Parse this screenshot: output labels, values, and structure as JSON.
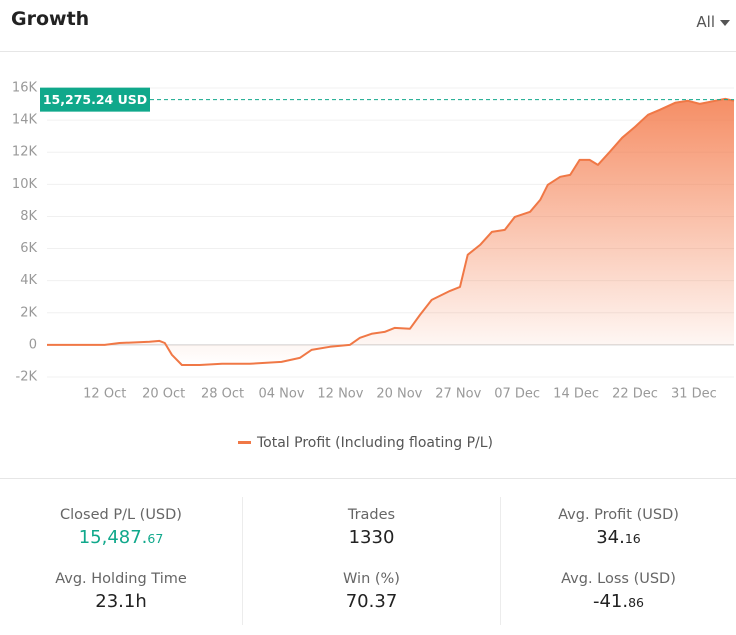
{
  "header": {
    "title": "Growth",
    "filter": "All"
  },
  "chart_data": {
    "type": "line",
    "xticks": [
      {
        "value": 0,
        "label": "12 Oct"
      },
      {
        "value": 1,
        "label": "20 Oct"
      },
      {
        "value": 2,
        "label": "28 Oct"
      },
      {
        "value": 3,
        "label": "04 Nov"
      },
      {
        "value": 4,
        "label": "12 Nov"
      },
      {
        "value": 5,
        "label": "20 Nov"
      },
      {
        "value": 6,
        "label": "27 Nov"
      },
      {
        "value": 7,
        "label": "07 Dec"
      },
      {
        "value": 8,
        "label": "14 Dec"
      },
      {
        "value": 9,
        "label": "22 Dec"
      },
      {
        "value": 10,
        "label": "31 Dec"
      }
    ],
    "xlim": [
      -0.98,
      10.68
    ],
    "ylim": [
      -2000,
      16000
    ],
    "yticks": [
      {
        "value": -2000,
        "label": "-2K"
      },
      0,
      {
        "value": 2000,
        "label": "2K"
      },
      {
        "value": 4000,
        "label": "4K"
      },
      {
        "value": 6000,
        "label": "6K"
      },
      {
        "value": 8000,
        "label": "8K"
      },
      {
        "value": 10000,
        "label": "10K"
      },
      {
        "value": 12000,
        "label": "12K"
      },
      {
        "value": 14000,
        "label": "14K"
      },
      {
        "value": 16000,
        "label": "16K"
      }
    ],
    "grid": true,
    "x": [
      -0.98,
      0,
      0.25,
      0.76,
      0.93,
      1.02,
      1.14,
      1.31,
      1.61,
      1.99,
      2.46,
      3.0,
      3.31,
      3.51,
      3.82,
      4.16,
      4.33,
      4.53,
      4.75,
      4.92,
      5.18,
      5.35,
      5.55,
      5.86,
      6.03,
      6.16,
      6.37,
      6.57,
      6.79,
      6.96,
      7.22,
      7.39,
      7.52,
      7.73,
      7.9,
      8.06,
      8.23,
      8.37,
      8.57,
      8.78,
      9.0,
      9.22,
      9.42,
      9.68,
      9.9,
      10.1,
      10.36,
      10.53,
      10.68
    ],
    "series": [
      {
        "name": "Total Profit (Including floating P/L)",
        "color": "#f07846",
        "values": [
          0,
          0,
          120,
          190,
          250,
          120,
          -620,
          -1250,
          -1250,
          -1180,
          -1180,
          -1060,
          -810,
          -310,
          -120,
          0,
          440,
          690,
          810,
          1060,
          1000,
          1870,
          2800,
          3360,
          3610,
          5610,
          6230,
          7040,
          7160,
          7970,
          8290,
          9030,
          9970,
          10470,
          10590,
          11520,
          11520,
          11210,
          12020,
          12900,
          13580,
          14330,
          14640,
          15080,
          15200,
          15010,
          15200,
          15330,
          15200
        ]
      }
    ],
    "reference_line": {
      "value": 15275.24,
      "value_label": "15,275.24 USD",
      "color": "#10a88b"
    }
  },
  "stats": [
    {
      "label": "Closed P/L (USD)",
      "value": "15,487.67",
      "small_decimals": true,
      "color": "#10a88b"
    },
    {
      "label": "Trades",
      "value": "1330",
      "small_decimals": false,
      "color": "#222222"
    },
    {
      "label": "Avg. Profit (USD)",
      "value": "34.16",
      "small_decimals": true,
      "color": "#222222"
    },
    {
      "label": "Avg. Holding Time",
      "value": "23.1h",
      "small_decimals": false,
      "color": "#222222"
    },
    {
      "label": "Win (%)",
      "value": "70.37",
      "small_decimals": false,
      "color": "#222222"
    },
    {
      "label": "Avg. Loss (USD)",
      "value": "-41.86",
      "small_decimals": true,
      "color": "#222222"
    }
  ]
}
